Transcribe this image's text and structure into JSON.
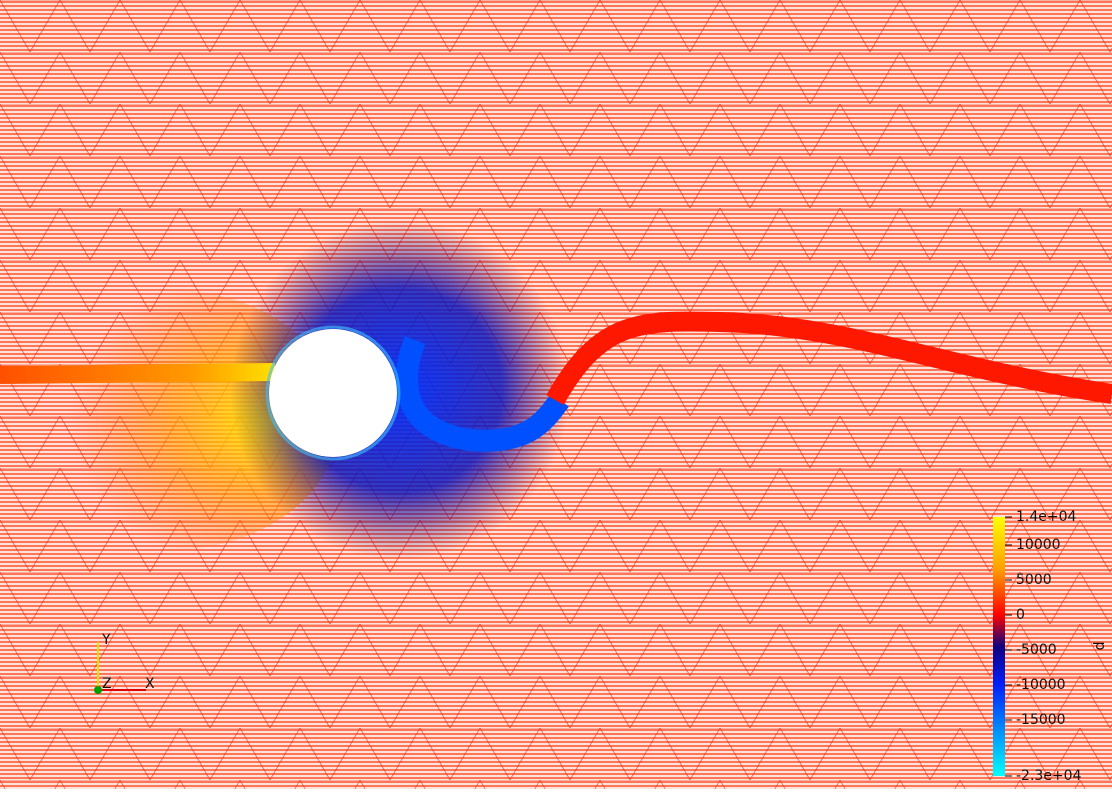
{
  "colorbar": {
    "title": "p",
    "range": [
      -23000,
      14000
    ],
    "ticks": [
      {
        "value": 14000,
        "label": "1.4e+04"
      },
      10000,
      5000,
      0,
      -5000,
      -10000,
      -15000,
      {
        "value": -23000,
        "label": "-2.3e+04"
      }
    ]
  },
  "orientation_axes": {
    "y": "Y",
    "z": "Z",
    "x": "X"
  }
}
